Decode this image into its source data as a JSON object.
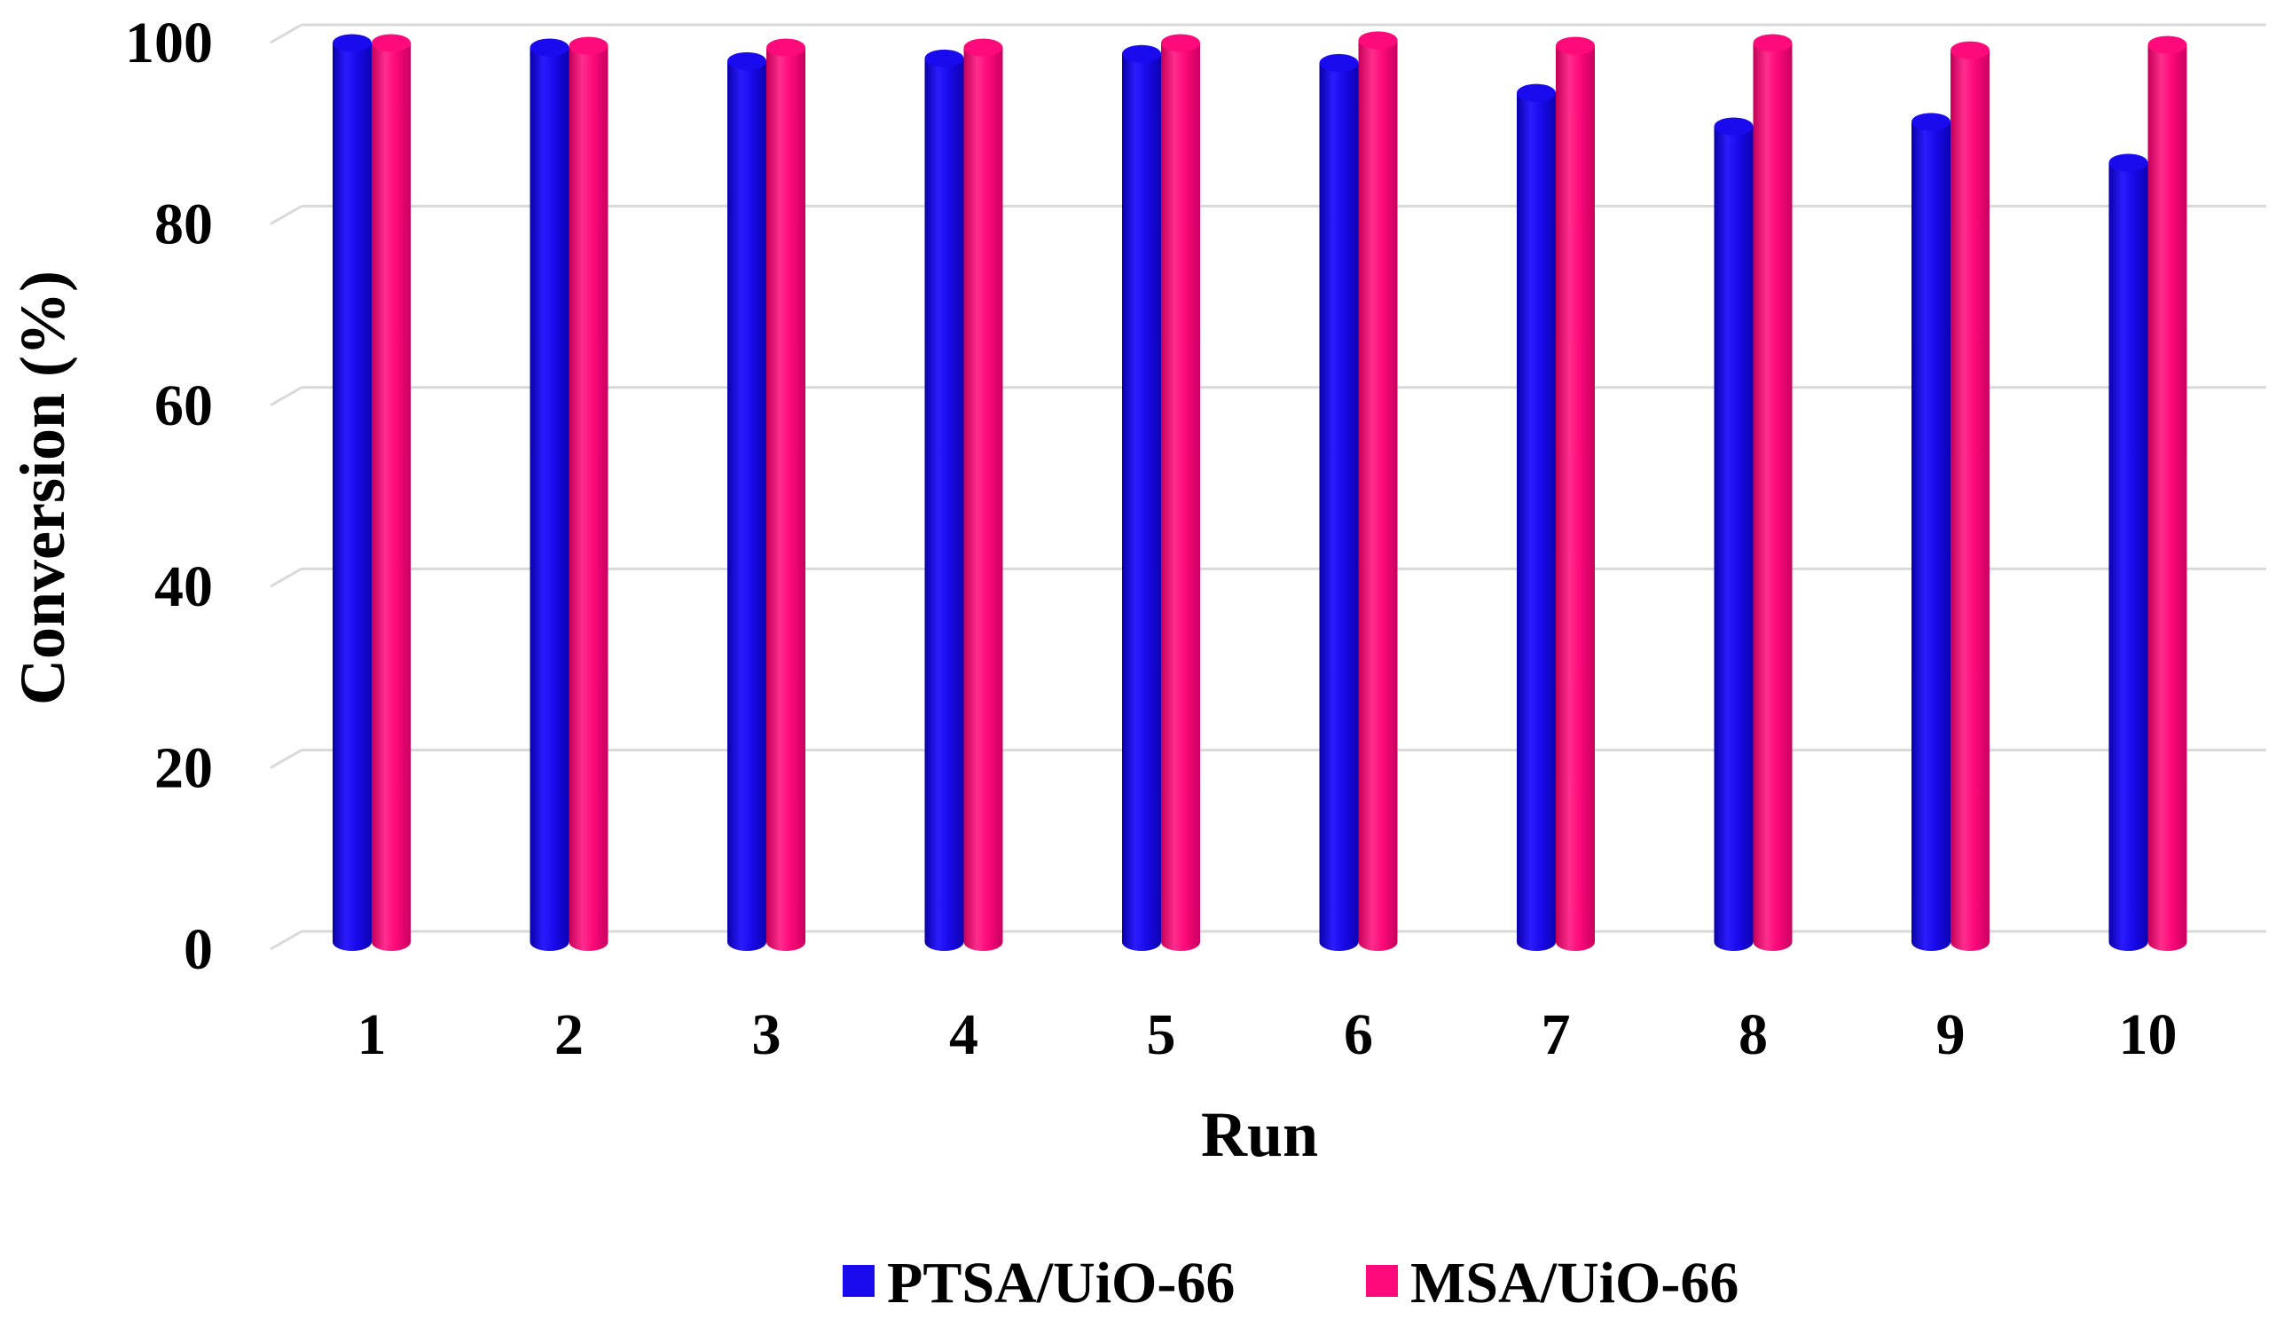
{
  "chart_data": {
    "type": "bar",
    "title": "",
    "xlabel": "Run",
    "ylabel": "Conversion (%)",
    "ylim": [
      0,
      100
    ],
    "y_ticks": [
      "0",
      "20",
      "40",
      "60",
      "80",
      "100"
    ],
    "categories": [
      "1",
      "2",
      "3",
      "4",
      "5",
      "6",
      "7",
      "8",
      "9",
      "10"
    ],
    "grid": true,
    "legend_position": "bottom",
    "series": [
      {
        "name": "PTSA/UiO-66",
        "color": "#1a0aee",
        "values": [
          98,
          97.5,
          96,
          96.3,
          96.8,
          95.8,
          92.5,
          88.8,
          89.3,
          84.8
        ]
      },
      {
        "name": "MSA/UiO-66",
        "color": "#ff0a7a",
        "values": [
          98,
          97.7,
          97.5,
          97.5,
          98,
          98.3,
          97.7,
          98,
          97.2,
          97.8
        ]
      }
    ]
  }
}
